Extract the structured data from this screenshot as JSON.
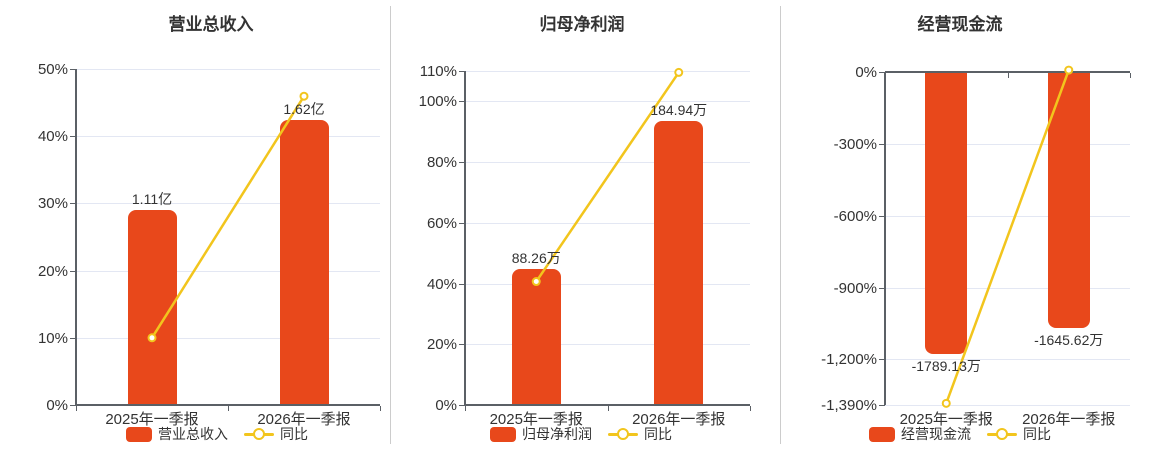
{
  "colors": {
    "bar": "#e8481b",
    "line": "#f2c51d",
    "grid": "#e3e7f3",
    "axis": "#5b6066",
    "text": "#333333",
    "divider": "#cccccc",
    "background": "#ffffff"
  },
  "chart_data": [
    {
      "type": "bar",
      "combo": "bar+line",
      "title": "营业总收入",
      "categories": [
        "2025年一季报",
        "2026年一季报"
      ],
      "series": [
        {
          "name": "营业总收入",
          "type": "bar",
          "unit": "亿",
          "labels": [
            "1.11亿",
            "1.62亿"
          ],
          "values": [
            1.11,
            1.62
          ],
          "axis_pct": [
            29.0,
            42.4
          ],
          "color": "#e8481b"
        },
        {
          "name": "同比",
          "type": "line",
          "unit": "%",
          "values_pct": [
            10.0,
            45.95
          ],
          "color": "#f2c51d"
        }
      ],
      "yaxis": {
        "min": 0,
        "max": 50,
        "tick_values": [
          50,
          40,
          30,
          20,
          10,
          0
        ],
        "tick_labels": [
          "50%",
          "40%",
          "30%",
          "20%",
          "10%",
          "0%"
        ]
      },
      "legend": [
        "营业总收入",
        "同比"
      ],
      "legend_position": "bottom",
      "grid": true
    },
    {
      "type": "bar",
      "combo": "bar+line",
      "title": "归母净利润",
      "categories": [
        "2025年一季报",
        "2026年一季报"
      ],
      "series": [
        {
          "name": "归母净利润",
          "type": "bar",
          "unit": "万",
          "labels": [
            "88.26万",
            "184.94万"
          ],
          "values": [
            88.26,
            184.94
          ],
          "axis_pct": [
            44.8,
            93.5
          ],
          "color": "#e8481b"
        },
        {
          "name": "同比",
          "type": "line",
          "unit": "%",
          "values_pct": [
            40.66,
            109.54
          ],
          "color": "#f2c51d"
        }
      ],
      "yaxis": {
        "min": 0,
        "max": 110,
        "tick_values": [
          110,
          100,
          80,
          60,
          40,
          20,
          0
        ],
        "tick_labels": [
          "110%",
          "100%",
          "80%",
          "60%",
          "40%",
          "20%",
          "0%"
        ]
      },
      "legend": [
        "归母净利润",
        "同比"
      ],
      "legend_position": "bottom",
      "grid": true
    },
    {
      "type": "bar",
      "combo": "bar+line",
      "title": "经营现金流",
      "categories": [
        "2025年一季报",
        "2026年一季报"
      ],
      "series": [
        {
          "name": "经营现金流",
          "type": "bar",
          "unit": "万",
          "labels": [
            "-1789.13万",
            "-1645.62万"
          ],
          "values": [
            -1789.13,
            -1645.62
          ],
          "axis_pct": [
            -1177,
            -1068
          ],
          "color": "#e8481b"
        },
        {
          "name": "同比",
          "type": "line",
          "unit": "%",
          "values_pct": [
            -1383.0,
            8.02
          ],
          "color": "#f2c51d"
        }
      ],
      "yaxis": {
        "min": -1390,
        "max": 0,
        "tick_values": [
          0,
          -300,
          -600,
          -900,
          -1200,
          -1390
        ],
        "tick_labels": [
          "0%",
          "-300%",
          "-600%",
          "-900%",
          "-1,200%",
          "-1,390%"
        ]
      },
      "legend": [
        "经营现金流",
        "同比"
      ],
      "legend_position": "bottom",
      "grid": true
    }
  ]
}
